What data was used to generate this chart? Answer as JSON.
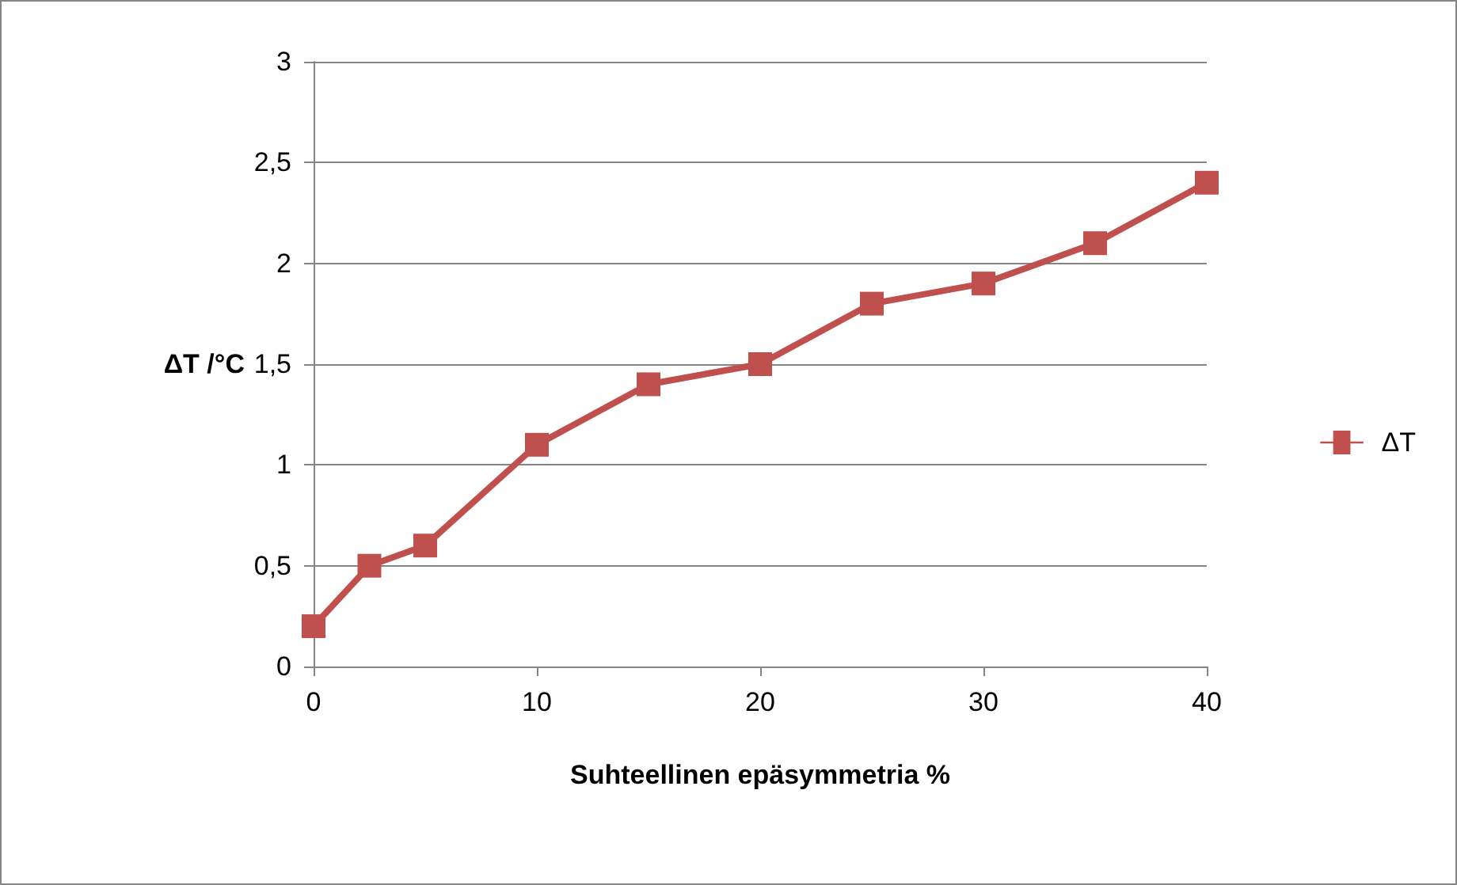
{
  "chart_data": {
    "type": "line",
    "xlabel": "Suhteellinen epäsymmetria %",
    "ylabel": "ΔT /°C",
    "x": [
      0,
      2.5,
      5,
      10,
      15,
      20,
      25,
      30,
      35,
      40
    ],
    "series": [
      {
        "name": "ΔT",
        "color": "#c0504d",
        "values": [
          0.2,
          0.5,
          0.6,
          1.1,
          1.4,
          1.5,
          1.8,
          1.9,
          2.1,
          2.4
        ]
      }
    ],
    "xlim": [
      0,
      40
    ],
    "xticks": [
      0,
      10,
      20,
      30,
      40
    ],
    "ylim": [
      0,
      3
    ],
    "yticks": [
      0,
      {
        "value": 0.5,
        "label": "0,5"
      },
      1,
      {
        "value": 1.5,
        "label": "1,5"
      },
      2,
      {
        "value": 2.5,
        "label": "2,5"
      },
      3
    ],
    "grid": "y",
    "legend": "right",
    "marker": "square",
    "line_style": "solid"
  }
}
